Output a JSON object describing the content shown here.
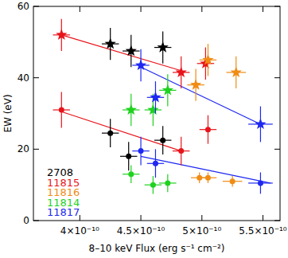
{
  "chart_data": {
    "type": "scatter",
    "x_label": "8–10 keV Flux (erg s⁻¹ cm⁻²)",
    "y_label": "EW (eV)",
    "xlim": [
      3.62e-10,
      5.64e-10
    ],
    "ylim": [
      0,
      60
    ],
    "xticks": [
      {
        "value": 4e-10,
        "label": "4×10⁻¹⁰"
      },
      {
        "value": 4.5e-10,
        "label": "4.5×10⁻¹⁰"
      },
      {
        "value": 5e-10,
        "label": "5×10⁻¹⁰"
      },
      {
        "value": 5.5e-10,
        "label": "5.5×10⁻¹⁰"
      }
    ],
    "yticks": [
      0,
      20,
      40,
      60
    ],
    "series": [
      {
        "name": "2708",
        "color": "#000000",
        "marker": "star",
        "x": [
          4.25e-10,
          4.42e-10,
          4.68e-10
        ],
        "values": [
          49.5,
          47.5,
          48.5
        ],
        "x_err": [
          7e-12,
          7e-12,
          7e-12
        ],
        "y_err": [
          4.5,
          4.5,
          4.5
        ]
      },
      {
        "name": "11815",
        "color": "#e8141b",
        "marker": "star",
        "x": [
          3.85e-10,
          4.83e-10,
          5.03e-10
        ],
        "values": [
          52,
          41.5,
          44
        ],
        "x_err": [
          7e-12,
          7e-12,
          7e-12
        ],
        "y_err": [
          4.5,
          4.5,
          4.5
        ]
      },
      {
        "name": "11816",
        "color": "#f08c14",
        "marker": "star",
        "x": [
          4.95e-10,
          5.05e-10,
          5.28e-10
        ],
        "values": [
          38,
          45,
          41.5
        ],
        "x_err": [
          7e-12,
          7e-12,
          8e-12
        ],
        "y_err": [
          4.5,
          4.5,
          4.5
        ]
      },
      {
        "name": "11814",
        "color": "#1ed21e",
        "marker": "star",
        "x": [
          4.42e-10,
          4.6e-10,
          4.72e-10
        ],
        "values": [
          31,
          31,
          36.5
        ],
        "x_err": [
          7e-12,
          7e-12,
          7e-12
        ],
        "y_err": [
          4.5,
          4.5,
          4.5
        ]
      },
      {
        "name": "11817",
        "color": "#1e28f0",
        "marker": "star",
        "x": [
          4.5e-10,
          4.62e-10,
          5.48e-10
        ],
        "values": [
          43.5,
          34.5,
          27
        ],
        "x_err": [
          7e-12,
          7e-12,
          1e-11
        ],
        "y_err": [
          4.5,
          4.5,
          5
        ]
      },
      {
        "name": "2708",
        "color": "#000000",
        "marker": "circle",
        "x": [
          4.25e-10,
          4.4e-10,
          4.68e-10
        ],
        "values": [
          24.5,
          18,
          22.5
        ],
        "x_err": [
          7e-12,
          7e-12,
          7e-12
        ],
        "y_err": [
          4,
          4,
          4
        ]
      },
      {
        "name": "11815",
        "color": "#e8141b",
        "marker": "circle",
        "x": [
          3.85e-10,
          4.83e-10,
          5.05e-10
        ],
        "values": [
          31,
          19.5,
          25.5
        ],
        "x_err": [
          7e-12,
          7e-12,
          7e-12
        ],
        "y_err": [
          5,
          4,
          4
        ]
      },
      {
        "name": "11816",
        "color": "#f08c14",
        "marker": "circle",
        "x": [
          4.98e-10,
          5.05e-10,
          5.25e-10
        ],
        "values": [
          12,
          12,
          11
        ],
        "x_err": [
          7e-12,
          7e-12,
          8e-12
        ],
        "y_err": [
          1.5,
          1.5,
          1.5
        ]
      },
      {
        "name": "11814",
        "color": "#1ed21e",
        "marker": "circle",
        "x": [
          4.42e-10,
          4.6e-10,
          4.72e-10
        ],
        "values": [
          13,
          10,
          10.5
        ],
        "x_err": [
          7e-12,
          7e-12,
          7e-12
        ],
        "y_err": [
          2.5,
          2.5,
          2.5
        ]
      },
      {
        "name": "11817",
        "color": "#1e28f0",
        "marker": "circle",
        "x": [
          4.5e-10,
          4.62e-10,
          5.48e-10
        ],
        "values": [
          19.5,
          16,
          10.5
        ],
        "x_err": [
          7e-12,
          7e-12,
          1e-11
        ],
        "y_err": [
          4,
          4,
          3
        ]
      }
    ],
    "fit_lines": [
      {
        "color": "#e8141b",
        "x": [
          3.85e-10,
          4.83e-10
        ],
        "values": [
          52,
          42
        ]
      },
      {
        "color": "#e8141b",
        "x": [
          3.85e-10,
          4.83e-10
        ],
        "values": [
          30.5,
          19.5
        ]
      },
      {
        "color": "#1e28f0",
        "x": [
          4.5e-10,
          5.48e-10
        ],
        "values": [
          43,
          27
        ]
      },
      {
        "color": "#1e28f0",
        "x": [
          4.5e-10,
          5.56e-10
        ],
        "values": [
          18,
          10.5
        ]
      }
    ],
    "legend": "lower left"
  }
}
